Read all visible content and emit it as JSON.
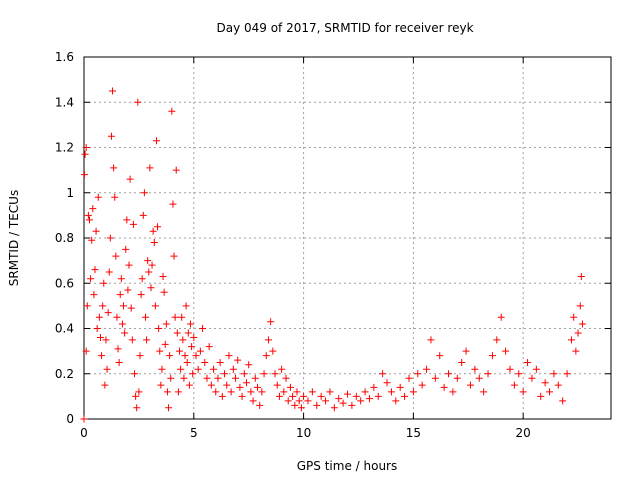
{
  "chart_data": {
    "type": "scatter",
    "title": "Day 049 of 2017, SRMTID for receiver reyk",
    "xlabel": "GPS time / hours",
    "ylabel": "SRMTID / TECUs",
    "xlim": [
      0,
      24
    ],
    "ylim": [
      0,
      1.6
    ],
    "xticks": [
      0,
      5,
      10,
      15,
      20
    ],
    "yticks": [
      0,
      0.2,
      0.4,
      0.6,
      0.8,
      1,
      1.2,
      1.4,
      1.6
    ],
    "ytick_labels": [
      "0",
      "0.2",
      "0.4",
      "0.6",
      "0.8",
      "1",
      "1.2",
      "1.4",
      "1.6"
    ],
    "grid": true,
    "marker": "+",
    "color": "#ff0000",
    "series": [
      {
        "name": "SRMTID",
        "points": [
          [
            0.0,
            0.0
          ],
          [
            0.02,
            1.08
          ],
          [
            0.05,
            1.17
          ],
          [
            0.1,
            1.2
          ],
          [
            0.1,
            0.3
          ],
          [
            0.15,
            0.5
          ],
          [
            0.2,
            0.9
          ],
          [
            0.25,
            0.88
          ],
          [
            0.3,
            0.62
          ],
          [
            0.35,
            0.79
          ],
          [
            0.4,
            0.93
          ],
          [
            0.45,
            0.55
          ],
          [
            0.5,
            0.66
          ],
          [
            0.55,
            0.83
          ],
          [
            0.6,
            0.4
          ],
          [
            0.65,
            0.98
          ],
          [
            0.7,
            0.45
          ],
          [
            0.75,
            0.36
          ],
          [
            0.8,
            0.28
          ],
          [
            0.85,
            0.5
          ],
          [
            0.9,
            0.6
          ],
          [
            0.95,
            0.15
          ],
          [
            1.0,
            0.35
          ],
          [
            1.05,
            0.22
          ],
          [
            1.1,
            0.47
          ],
          [
            1.15,
            0.65
          ],
          [
            1.2,
            0.8
          ],
          [
            1.25,
            1.25
          ],
          [
            1.3,
            1.45
          ],
          [
            1.35,
            1.11
          ],
          [
            1.4,
            0.98
          ],
          [
            1.45,
            0.72
          ],
          [
            1.5,
            0.45
          ],
          [
            1.55,
            0.31
          ],
          [
            1.6,
            0.25
          ],
          [
            1.65,
            0.55
          ],
          [
            1.7,
            0.62
          ],
          [
            1.75,
            0.42
          ],
          [
            1.8,
            0.5
          ],
          [
            1.85,
            0.38
          ],
          [
            1.9,
            0.75
          ],
          [
            1.95,
            0.88
          ],
          [
            2.0,
            0.57
          ],
          [
            2.05,
            0.68
          ],
          [
            2.1,
            1.06
          ],
          [
            2.15,
            0.49
          ],
          [
            2.2,
            0.35
          ],
          [
            2.25,
            0.86
          ],
          [
            2.3,
            0.2
          ],
          [
            2.35,
            0.1
          ],
          [
            2.4,
            0.05
          ],
          [
            2.45,
            1.4
          ],
          [
            2.5,
            0.12
          ],
          [
            2.55,
            0.28
          ],
          [
            2.6,
            0.55
          ],
          [
            2.65,
            0.62
          ],
          [
            2.7,
            0.9
          ],
          [
            2.75,
            1.0
          ],
          [
            2.8,
            0.45
          ],
          [
            2.85,
            0.35
          ],
          [
            2.9,
            0.7
          ],
          [
            2.95,
            0.65
          ],
          [
            3.0,
            1.11
          ],
          [
            3.05,
            0.58
          ],
          [
            3.1,
            0.68
          ],
          [
            3.15,
            0.83
          ],
          [
            3.2,
            0.78
          ],
          [
            3.25,
            0.5
          ],
          [
            3.3,
            1.23
          ],
          [
            3.35,
            0.85
          ],
          [
            3.4,
            0.4
          ],
          [
            3.45,
            0.3
          ],
          [
            3.5,
            0.15
          ],
          [
            3.55,
            0.22
          ],
          [
            3.6,
            0.63
          ],
          [
            3.65,
            0.56
          ],
          [
            3.7,
            0.33
          ],
          [
            3.75,
            0.42
          ],
          [
            3.8,
            0.12
          ],
          [
            3.85,
            0.05
          ],
          [
            3.9,
            0.28
          ],
          [
            3.95,
            0.18
          ],
          [
            4.0,
            1.36
          ],
          [
            4.05,
            0.95
          ],
          [
            4.1,
            0.72
          ],
          [
            4.15,
            0.45
          ],
          [
            4.2,
            1.1
          ],
          [
            4.25,
            0.38
          ],
          [
            4.3,
            0.12
          ],
          [
            4.35,
            0.3
          ],
          [
            4.4,
            0.22
          ],
          [
            4.45,
            0.45
          ],
          [
            4.5,
            0.35
          ],
          [
            4.55,
            0.18
          ],
          [
            4.6,
            0.28
          ],
          [
            4.65,
            0.5
          ],
          [
            4.7,
            0.25
          ],
          [
            4.75,
            0.38
          ],
          [
            4.8,
            0.15
          ],
          [
            4.85,
            0.42
          ],
          [
            4.9,
            0.32
          ],
          [
            4.95,
            0.2
          ],
          [
            5.0,
            0.36
          ],
          [
            5.1,
            0.28
          ],
          [
            5.2,
            0.22
          ],
          [
            5.3,
            0.3
          ],
          [
            5.4,
            0.4
          ],
          [
            5.5,
            0.25
          ],
          [
            5.6,
            0.18
          ],
          [
            5.7,
            0.32
          ],
          [
            5.8,
            0.15
          ],
          [
            5.9,
            0.22
          ],
          [
            6.0,
            0.12
          ],
          [
            6.1,
            0.18
          ],
          [
            6.2,
            0.25
          ],
          [
            6.3,
            0.1
          ],
          [
            6.4,
            0.2
          ],
          [
            6.5,
            0.15
          ],
          [
            6.6,
            0.28
          ],
          [
            6.7,
            0.12
          ],
          [
            6.8,
            0.22
          ],
          [
            6.9,
            0.18
          ],
          [
            7.0,
            0.26
          ],
          [
            7.1,
            0.14
          ],
          [
            7.2,
            0.1
          ],
          [
            7.3,
            0.2
          ],
          [
            7.4,
            0.16
          ],
          [
            7.5,
            0.24
          ],
          [
            7.6,
            0.12
          ],
          [
            7.7,
            0.08
          ],
          [
            7.8,
            0.18
          ],
          [
            7.9,
            0.14
          ],
          [
            8.0,
            0.06
          ],
          [
            8.1,
            0.12
          ],
          [
            8.2,
            0.2
          ],
          [
            8.3,
            0.28
          ],
          [
            8.4,
            0.35
          ],
          [
            8.5,
            0.43
          ],
          [
            8.6,
            0.3
          ],
          [
            8.7,
            0.2
          ],
          [
            8.8,
            0.15
          ],
          [
            8.9,
            0.1
          ],
          [
            9.0,
            0.22
          ],
          [
            9.1,
            0.12
          ],
          [
            9.2,
            0.18
          ],
          [
            9.3,
            0.08
          ],
          [
            9.4,
            0.14
          ],
          [
            9.5,
            0.1
          ],
          [
            9.6,
            0.06
          ],
          [
            9.7,
            0.12
          ],
          [
            9.8,
            0.08
          ],
          [
            9.9,
            0.05
          ],
          [
            10.0,
            0.1
          ],
          [
            10.2,
            0.08
          ],
          [
            10.4,
            0.12
          ],
          [
            10.6,
            0.06
          ],
          [
            10.8,
            0.1
          ],
          [
            11.0,
            0.08
          ],
          [
            11.2,
            0.12
          ],
          [
            11.4,
            0.05
          ],
          [
            11.6,
            0.09
          ],
          [
            11.8,
            0.07
          ],
          [
            12.0,
            0.11
          ],
          [
            12.2,
            0.06
          ],
          [
            12.4,
            0.1
          ],
          [
            12.6,
            0.08
          ],
          [
            12.8,
            0.12
          ],
          [
            13.0,
            0.09
          ],
          [
            13.2,
            0.14
          ],
          [
            13.4,
            0.1
          ],
          [
            13.6,
            0.2
          ],
          [
            13.8,
            0.16
          ],
          [
            14.0,
            0.12
          ],
          [
            14.2,
            0.08
          ],
          [
            14.4,
            0.14
          ],
          [
            14.6,
            0.1
          ],
          [
            14.8,
            0.18
          ],
          [
            15.0,
            0.12
          ],
          [
            15.2,
            0.2
          ],
          [
            15.4,
            0.15
          ],
          [
            15.6,
            0.22
          ],
          [
            15.8,
            0.35
          ],
          [
            16.0,
            0.18
          ],
          [
            16.2,
            0.28
          ],
          [
            16.4,
            0.14
          ],
          [
            16.6,
            0.2
          ],
          [
            16.8,
            0.12
          ],
          [
            17.0,
            0.18
          ],
          [
            17.2,
            0.25
          ],
          [
            17.4,
            0.3
          ],
          [
            17.6,
            0.15
          ],
          [
            17.8,
            0.22
          ],
          [
            18.0,
            0.18
          ],
          [
            18.2,
            0.12
          ],
          [
            18.4,
            0.2
          ],
          [
            18.6,
            0.28
          ],
          [
            18.8,
            0.35
          ],
          [
            19.0,
            0.45
          ],
          [
            19.2,
            0.3
          ],
          [
            19.4,
            0.22
          ],
          [
            19.6,
            0.15
          ],
          [
            19.8,
            0.2
          ],
          [
            20.0,
            0.12
          ],
          [
            20.2,
            0.25
          ],
          [
            20.4,
            0.18
          ],
          [
            20.6,
            0.22
          ],
          [
            20.8,
            0.1
          ],
          [
            21.0,
            0.16
          ],
          [
            21.2,
            0.12
          ],
          [
            21.4,
            0.2
          ],
          [
            21.6,
            0.15
          ],
          [
            21.8,
            0.08
          ],
          [
            22.0,
            0.2
          ],
          [
            22.2,
            0.35
          ],
          [
            22.3,
            0.45
          ],
          [
            22.4,
            0.3
          ],
          [
            22.5,
            0.38
          ],
          [
            22.6,
            0.5
          ],
          [
            22.65,
            0.63
          ],
          [
            22.7,
            0.42
          ]
        ]
      }
    ]
  }
}
